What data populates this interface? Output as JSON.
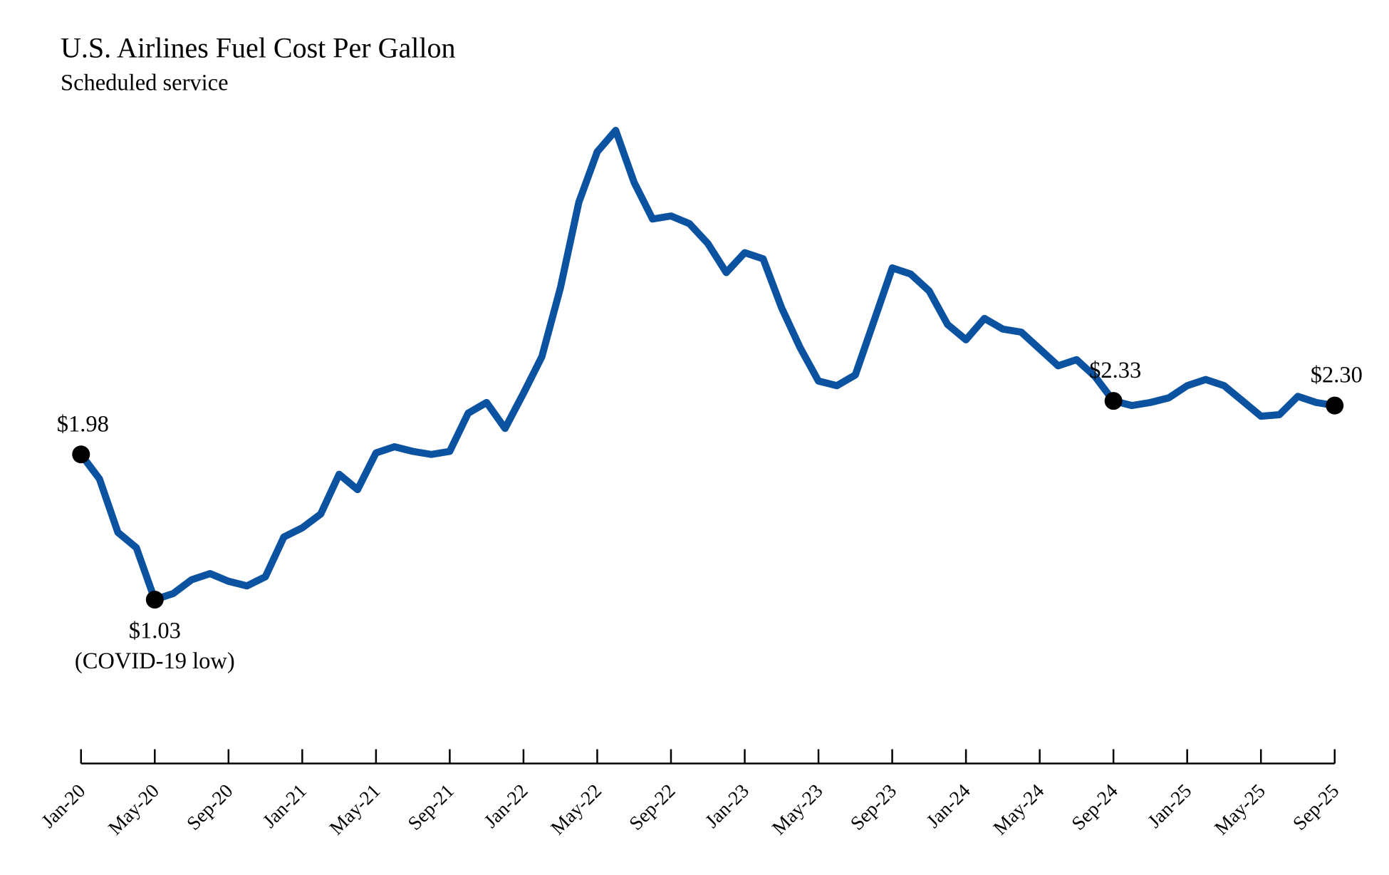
{
  "chart_data": {
    "type": "line",
    "title": "U.S. Airlines Fuel Cost Per Gallon",
    "subtitle": "Scheduled service",
    "xlabel": "",
    "ylabel": "",
    "unit": "$ per gallon",
    "ylim": [
      0.2,
      4.3
    ],
    "grid": false,
    "line_color": "#0b52a0",
    "x": [
      "Jan-20",
      "Feb-20",
      "Mar-20",
      "Apr-20",
      "May-20",
      "Jun-20",
      "Jul-20",
      "Aug-20",
      "Sep-20",
      "Oct-20",
      "Nov-20",
      "Dec-20",
      "Jan-21",
      "Feb-21",
      "Mar-21",
      "Apr-21",
      "May-21",
      "Jun-21",
      "Jul-21",
      "Aug-21",
      "Sep-21",
      "Oct-21",
      "Nov-21",
      "Dec-21",
      "Jan-22",
      "Feb-22",
      "Mar-22",
      "Apr-22",
      "May-22",
      "Jun-22",
      "Jul-22",
      "Aug-22",
      "Sep-22",
      "Oct-22",
      "Nov-22",
      "Dec-22",
      "Jan-23",
      "Feb-23",
      "Mar-23",
      "Apr-23",
      "May-23",
      "Jun-23",
      "Jul-23",
      "Aug-23",
      "Sep-23",
      "Oct-23",
      "Nov-23",
      "Dec-23",
      "Jan-24",
      "Feb-24",
      "Mar-24",
      "Apr-24",
      "May-24",
      "Jun-24",
      "Jul-24",
      "Aug-24",
      "Sep-24",
      "Oct-24",
      "Nov-24",
      "Dec-24",
      "Jan-25",
      "Feb-25",
      "Mar-25",
      "Apr-25",
      "May-25",
      "Jun-25",
      "Jul-25",
      "Aug-25",
      "Sep-25"
    ],
    "values": [
      1.98,
      1.82,
      1.47,
      1.37,
      1.03,
      1.07,
      1.16,
      1.2,
      1.15,
      1.12,
      1.18,
      1.44,
      1.5,
      1.59,
      1.85,
      1.75,
      1.99,
      2.03,
      2.0,
      1.98,
      2.0,
      2.25,
      2.32,
      2.15,
      2.38,
      2.62,
      3.07,
      3.63,
      3.96,
      4.1,
      3.76,
      3.52,
      3.54,
      3.49,
      3.36,
      3.17,
      3.3,
      3.26,
      2.94,
      2.68,
      2.46,
      2.43,
      2.5,
      2.85,
      3.2,
      3.16,
      3.05,
      2.83,
      2.73,
      2.87,
      2.8,
      2.78,
      2.67,
      2.56,
      2.6,
      2.49,
      2.33,
      2.3,
      2.32,
      2.35,
      2.43,
      2.47,
      2.43,
      2.33,
      2.23,
      2.24,
      2.36,
      2.32,
      2.3
    ],
    "tick_labels": [
      "Jan-20",
      "May-20",
      "Sep-20",
      "Jan-21",
      "May-21",
      "Sep-21",
      "Jan-22",
      "May-22",
      "Sep-22",
      "Jan-23",
      "May-23",
      "Sep-23",
      "Jan-24",
      "May-24",
      "Sep-24",
      "Jan-25",
      "May-25",
      "Sep-25"
    ],
    "annotations": [
      {
        "x": "Jan-20",
        "label": "$1.98",
        "sublabel": "",
        "position": "above"
      },
      {
        "x": "May-20",
        "label": "$1.03",
        "sublabel": "(COVID-19 low)",
        "position": "below"
      },
      {
        "x": "Sep-24",
        "label": "$2.33",
        "sublabel": "",
        "position": "above"
      },
      {
        "x": "Sep-25",
        "label": "$2.30",
        "sublabel": "",
        "position": "above"
      }
    ]
  }
}
